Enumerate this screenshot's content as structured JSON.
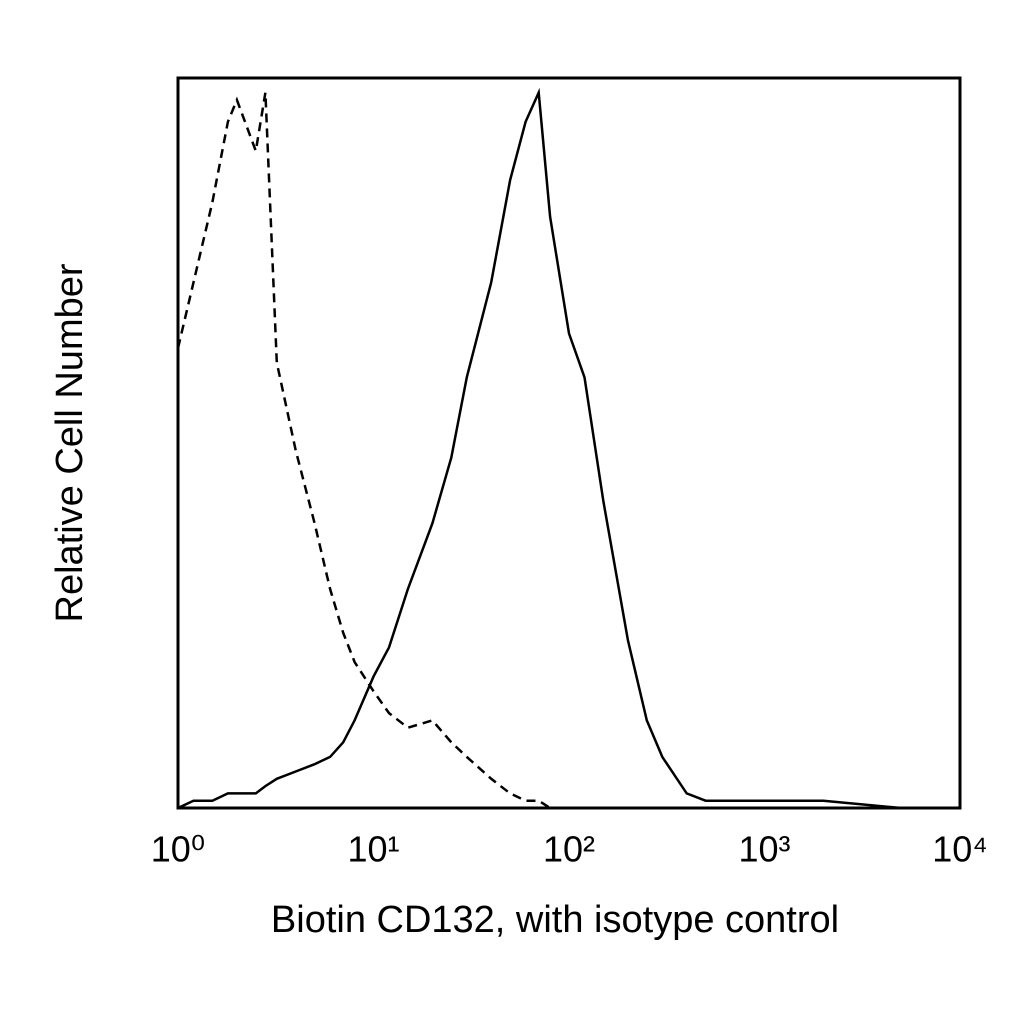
{
  "chart_data": {
    "type": "line",
    "xlabel": "Biotin CD132, with isotype control",
    "ylabel": "Relative Cell Number",
    "xscale": "log",
    "xlim": [
      1,
      10000
    ],
    "xticks": [
      {
        "value": 1,
        "label": "10⁰"
      },
      {
        "value": 10,
        "label": "10¹"
      },
      {
        "value": 100,
        "label": "10²"
      },
      {
        "value": 1000,
        "label": "10³"
      },
      {
        "value": 10000,
        "label": "10⁴"
      }
    ],
    "ylim": [
      0,
      100
    ],
    "grid": false,
    "x": [
      1,
      1.2,
      1.5,
      1.8,
      2,
      2.5,
      2.8,
      3.2,
      4,
      5,
      6,
      7,
      8,
      10,
      12,
      15,
      20,
      25,
      30,
      40,
      50,
      60,
      70,
      80,
      100,
      120,
      150,
      200,
      250,
      300,
      400,
      500,
      700,
      1000,
      2000,
      5000,
      10000
    ],
    "series": [
      {
        "color": "#000000",
        "style": "solid",
        "values": [
          0,
          1,
          1,
          2,
          2,
          2,
          3,
          4,
          5,
          6,
          7,
          9,
          12,
          18,
          22,
          30,
          39,
          48,
          59,
          72,
          86,
          94,
          98,
          81,
          65,
          59,
          42,
          23,
          12,
          7,
          2,
          1,
          1,
          1,
          1,
          0,
          0
        ]
      },
      {
        "color": "#000000",
        "style": "dashed",
        "values": [
          63,
          72,
          83,
          94,
          97,
          90,
          98,
          61,
          49,
          39,
          30,
          24,
          20,
          16,
          13,
          11,
          12,
          9,
          7,
          4,
          2,
          1,
          1,
          0,
          0,
          0,
          0,
          0,
          0,
          0,
          0,
          0,
          0,
          0,
          0,
          0,
          0
        ]
      }
    ]
  }
}
